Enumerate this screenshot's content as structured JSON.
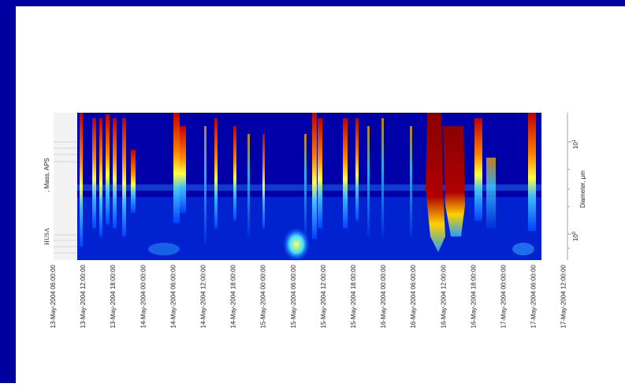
{
  "figure": {
    "x_tick_labels": [
      "13-May-2004 06:00:00",
      "13-May-2004 12:00:00",
      "13-May-2004 18:00:00",
      "14-May-2004 00:00:00",
      "14-May-2004 06:00:00",
      "14-May-2004 12:00:00",
      "14-May-2004 18:00:00",
      "15-May-2004 00:00:00",
      "15-May-2004 06:00:00",
      "15-May-2004 12:00:00",
      "15-May-2004 18:00:00",
      "16-May-2004 00:00:00",
      "16-May-2004 06:00:00",
      "16-May-2004 12:00:00",
      "16-May-2004 18:00:00",
      "17-May-2004 00:00:00",
      "17-May-2004 06:00:00",
      "17-May-2004 12:00:00"
    ],
    "left_label": [
      "HUSA",
      ", Mass, APS"
    ],
    "right_label": "Diameter, µm",
    "right_ticks": [
      {
        "base": "10",
        "exp": "1"
      },
      {
        "base": "10",
        "exp": "0"
      }
    ]
  }
}
